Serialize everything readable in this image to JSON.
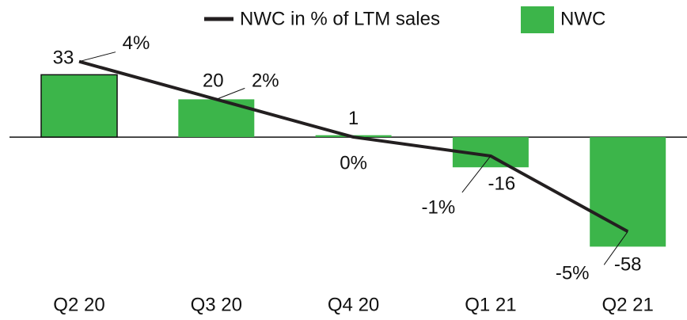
{
  "chart_data": {
    "type": "bar",
    "categories": [
      "Q2 20",
      "Q3 20",
      "Q4 20",
      "Q1 21",
      "Q2 21"
    ],
    "series": [
      {
        "name": "NWC",
        "type": "bar",
        "color": "#3cb54a",
        "values": [
          33,
          20,
          1,
          -16,
          -58
        ]
      },
      {
        "name": "NWC in % of LTM sales",
        "type": "line",
        "axis": "y2",
        "color": "#231f20",
        "values": [
          4,
          2,
          0,
          -1,
          -5
        ],
        "value_labels": [
          "4%",
          "2%",
          "0%",
          "-1%",
          "-5%"
        ]
      }
    ],
    "ylim": [
      -70,
      60
    ],
    "y2lim": [
      -7,
      6
    ],
    "legend": "top"
  }
}
